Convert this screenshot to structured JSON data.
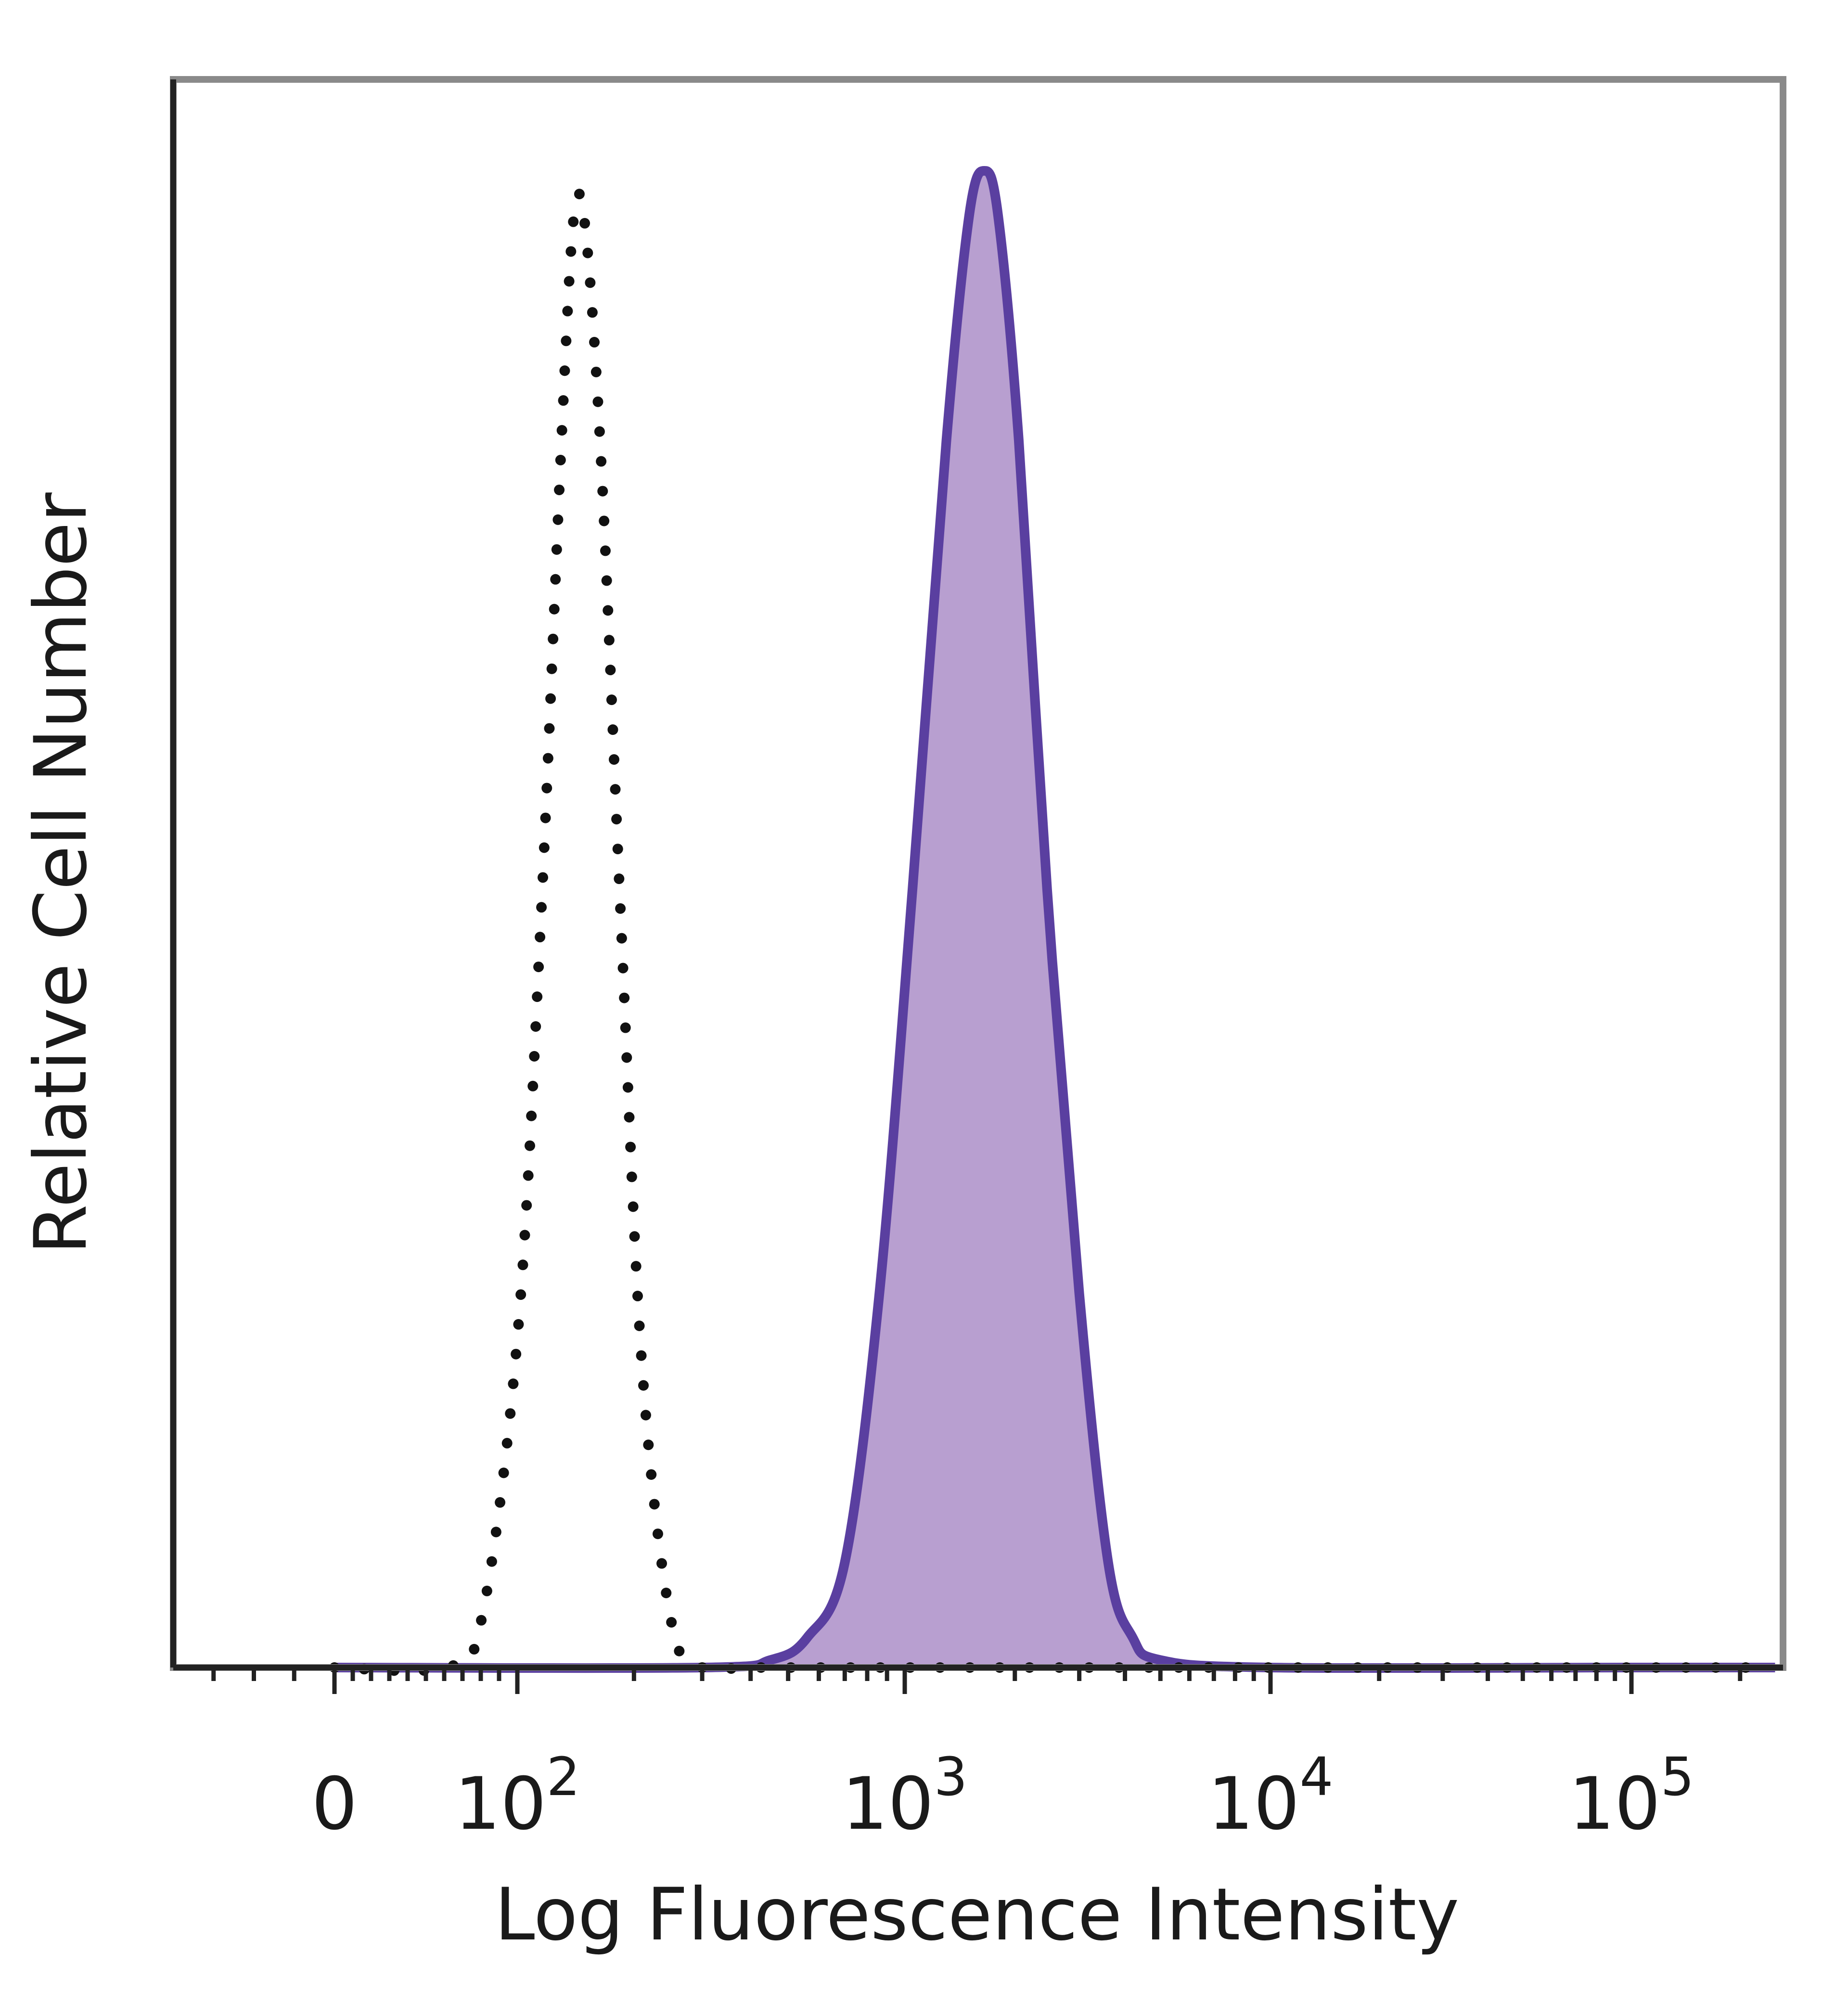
{
  "chart_data": {
    "type": "area",
    "title": "",
    "xlabel": "Log Fluorescence Intensity",
    "ylabel": "Relative Cell Number",
    "x_scale": "biexponential (linear near 0, log above 10^2)",
    "xlim": [
      -40,
      250000
    ],
    "ylim": [
      0,
      1.0
    ],
    "x_ticks": [
      {
        "value": 0,
        "base": "0",
        "exp": ""
      },
      {
        "value": 100,
        "base": "10",
        "exp": "2"
      },
      {
        "value": 1000,
        "base": "10",
        "exp": "3"
      },
      {
        "value": 10000,
        "base": "10",
        "exp": "4"
      },
      {
        "value": 100000,
        "base": "10",
        "exp": "5"
      }
    ],
    "grid": false,
    "legend": "none",
    "series": [
      {
        "style": "dotted outline",
        "color": "#111111",
        "x": [
          0,
          60,
          80,
          100,
          115,
          130,
          140,
          150,
          165,
          185,
          210,
          250,
          300,
          400,
          1000,
          10000,
          100000,
          250000
        ],
        "y": [
          0,
          0,
          0.03,
          0.22,
          0.5,
          0.82,
          0.97,
          0.96,
          0.8,
          0.5,
          0.2,
          0.03,
          0,
          0,
          0,
          0,
          0,
          0
        ]
      },
      {
        "style": "filled, solid outline",
        "color": "#5a3fa0",
        "fill": "#b89fd0",
        "x": [
          0,
          300,
          450,
          560,
          700,
          860,
          1050,
          1300,
          1500,
          1650,
          1800,
          2050,
          2450,
          3000,
          3600,
          4200,
          5000,
          10000,
          100000,
          250000
        ],
        "y": [
          0,
          0,
          0.005,
          0.02,
          0.07,
          0.25,
          0.52,
          0.82,
          0.97,
          1.0,
          0.97,
          0.82,
          0.52,
          0.25,
          0.07,
          0.02,
          0.005,
          0,
          0,
          0
        ]
      }
    ]
  }
}
